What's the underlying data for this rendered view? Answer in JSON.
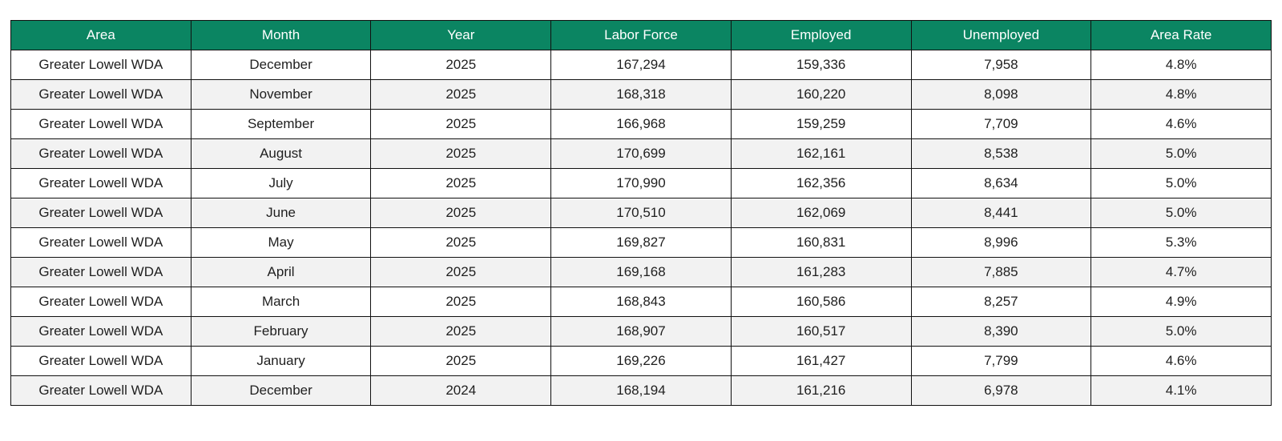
{
  "table": {
    "header_color": "#0b8562",
    "alt_row_color": "#f2f2f2",
    "columns": [
      "Area",
      "Month",
      "Year",
      "Labor Force",
      "Employed",
      "Unemployed",
      "Area Rate"
    ],
    "rows": [
      [
        "Greater Lowell WDA",
        "December",
        "2025",
        "167,294",
        "159,336",
        "7,958",
        "4.8%"
      ],
      [
        "Greater Lowell WDA",
        "November",
        "2025",
        "168,318",
        "160,220",
        "8,098",
        "4.8%"
      ],
      [
        "Greater Lowell WDA",
        "September",
        "2025",
        "166,968",
        "159,259",
        "7,709",
        "4.6%"
      ],
      [
        "Greater Lowell WDA",
        "August",
        "2025",
        "170,699",
        "162,161",
        "8,538",
        "5.0%"
      ],
      [
        "Greater Lowell WDA",
        "July",
        "2025",
        "170,990",
        "162,356",
        "8,634",
        "5.0%"
      ],
      [
        "Greater Lowell WDA",
        "June",
        "2025",
        "170,510",
        "162,069",
        "8,441",
        "5.0%"
      ],
      [
        "Greater Lowell WDA",
        "May",
        "2025",
        "169,827",
        "160,831",
        "8,996",
        "5.3%"
      ],
      [
        "Greater Lowell WDA",
        "April",
        "2025",
        "169,168",
        "161,283",
        "7,885",
        "4.7%"
      ],
      [
        "Greater Lowell WDA",
        "March",
        "2025",
        "168,843",
        "160,586",
        "8,257",
        "4.9%"
      ],
      [
        "Greater Lowell WDA",
        "February",
        "2025",
        "168,907",
        "160,517",
        "8,390",
        "5.0%"
      ],
      [
        "Greater Lowell WDA",
        "January",
        "2025",
        "169,226",
        "161,427",
        "7,799",
        "4.6%"
      ],
      [
        "Greater Lowell WDA",
        "December",
        "2024",
        "168,194",
        "161,216",
        "6,978",
        "4.1%"
      ]
    ]
  }
}
